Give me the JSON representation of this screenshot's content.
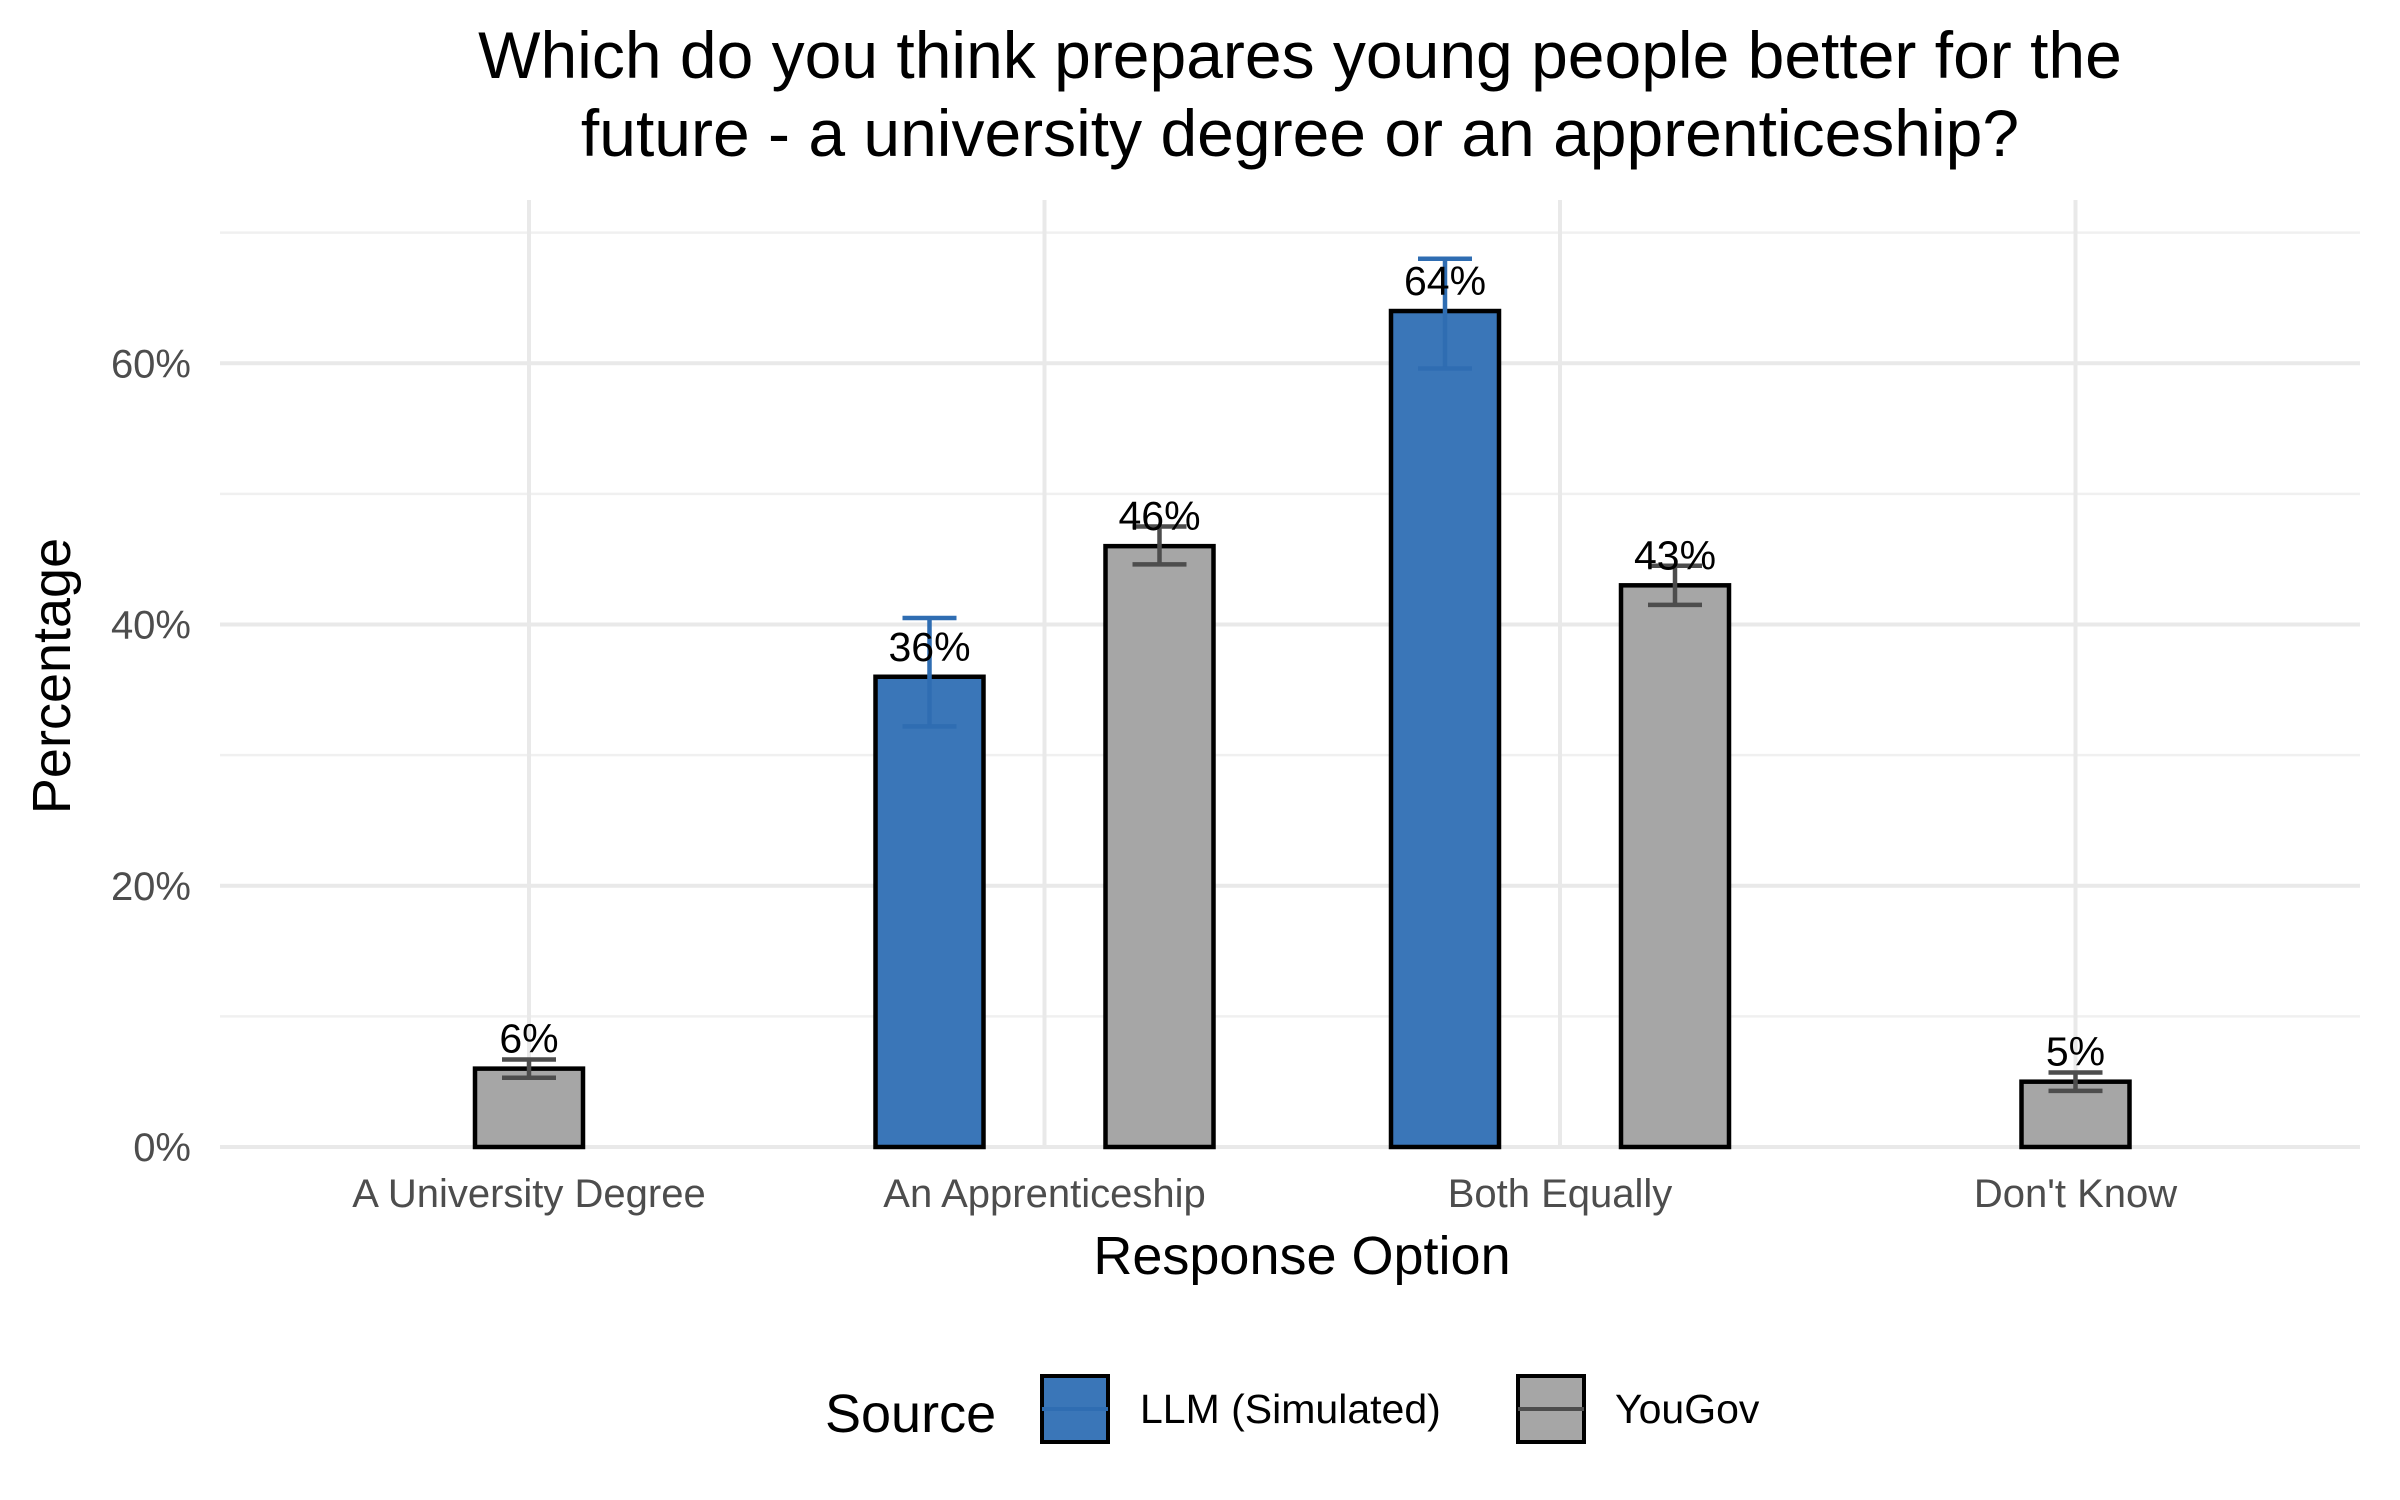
{
  "chart_data": {
    "type": "bar",
    "title": "Which do you think prepares young people better for the future - a university degree or an apprenticeship?",
    "title_lines": [
      "Which do you think prepares young people better for the",
      "future - a university degree or an apprenticeship?"
    ],
    "xlabel": "Response Option",
    "ylabel": "Percentage",
    "ylim": [
      0,
      72.5
    ],
    "yticks": [
      0,
      20,
      40,
      60
    ],
    "ytick_labels": [
      "0%",
      "20%",
      "40%",
      "60%"
    ],
    "categories": [
      "A University Degree",
      "An Apprenticeship",
      "Both Equally",
      "Don't Know"
    ],
    "legend": {
      "title": "Source",
      "position": "bottom"
    },
    "series": [
      {
        "name": "LLM (Simulated)",
        "color": "#3a76b8",
        "errorbar_color": "#2f6db2",
        "values": [
          null,
          36,
          64,
          null
        ],
        "labels": [
          null,
          "36%",
          "64%",
          null
        ],
        "error_low": [
          null,
          32.2,
          59.6,
          null
        ],
        "error_high": [
          null,
          40.5,
          68.0,
          null
        ]
      },
      {
        "name": "YouGov",
        "color": "#a6a6a6",
        "errorbar_color": "#4d4d4d",
        "values": [
          6,
          46,
          43,
          5
        ],
        "labels": [
          "6%",
          "46%",
          "43%",
          "5%"
        ],
        "error_low": [
          5.3,
          44.6,
          41.5,
          4.3
        ],
        "error_high": [
          6.7,
          47.5,
          44.5,
          5.7
        ]
      }
    ]
  }
}
